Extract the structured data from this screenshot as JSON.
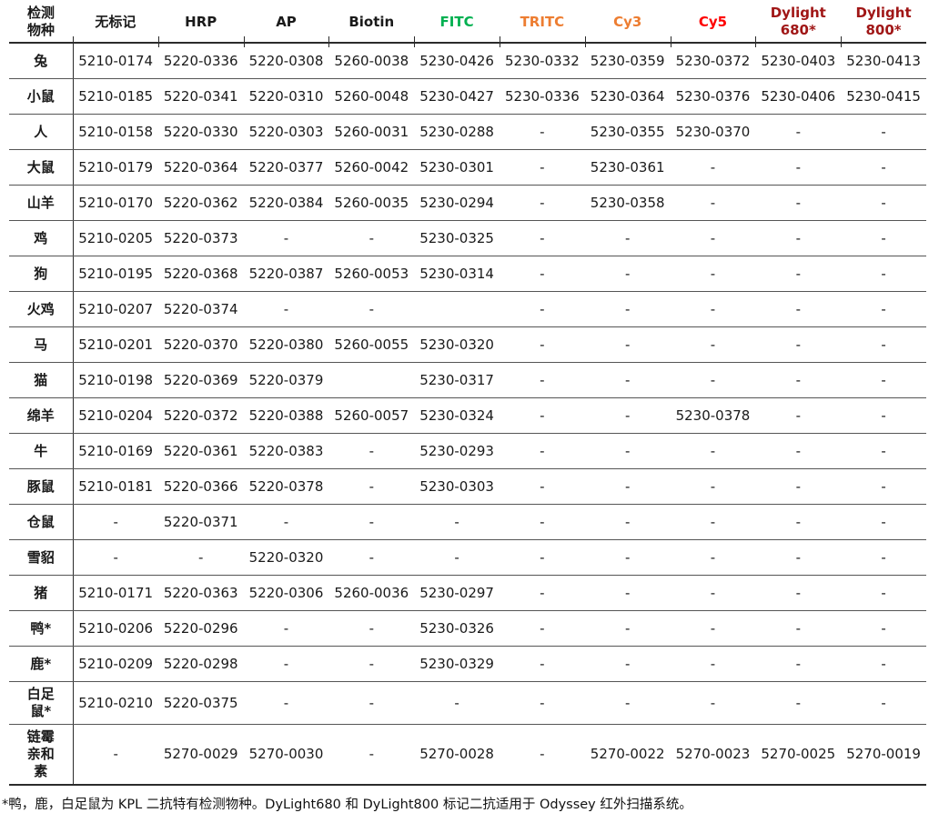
{
  "table": {
    "columns": [
      {
        "label": "检测\n物种",
        "color": "#1a1a1a"
      },
      {
        "label": "无标记",
        "color": "#1a1a1a"
      },
      {
        "label": "HRP",
        "color": "#1a1a1a"
      },
      {
        "label": "AP",
        "color": "#1a1a1a"
      },
      {
        "label": "Biotin",
        "color": "#1a1a1a"
      },
      {
        "label": "FITC",
        "color": "#00b050"
      },
      {
        "label": "TRITC",
        "color": "#ed7d31"
      },
      {
        "label": "Cy3",
        "color": "#ed7d31"
      },
      {
        "label": "Cy5",
        "color": "#fe0000"
      },
      {
        "label": "Dylight\n680*",
        "color": "#a01616"
      },
      {
        "label": "Dylight\n800*",
        "color": "#a01616"
      }
    ],
    "rows": [
      {
        "species": "兔",
        "values": [
          "5210-0174",
          "5220-0336",
          "5220-0308",
          "5260-0038",
          "5230-0426",
          "5230-0332",
          "5230-0359",
          "5230-0372",
          "5230-0403",
          "5230-0413"
        ]
      },
      {
        "species": "小鼠",
        "values": [
          "5210-0185",
          "5220-0341",
          "5220-0310",
          "5260-0048",
          "5230-0427",
          "5230-0336",
          "5230-0364",
          "5230-0376",
          "5230-0406",
          "5230-0415"
        ]
      },
      {
        "species": "人",
        "values": [
          "5210-0158",
          "5220-0330",
          "5220-0303",
          "5260-0031",
          "5230-0288",
          "-",
          "5230-0355",
          "5230-0370",
          "-",
          "-"
        ]
      },
      {
        "species": "大鼠",
        "values": [
          "5210-0179",
          "5220-0364",
          "5220-0377",
          "5260-0042",
          "5230-0301",
          "-",
          "5230-0361",
          "-",
          "-",
          "-"
        ]
      },
      {
        "species": "山羊",
        "values": [
          "5210-0170",
          "5220-0362",
          "5220-0384",
          "5260-0035",
          "5230-0294",
          "-",
          "5230-0358",
          "-",
          "-",
          "-"
        ]
      },
      {
        "species": "鸡",
        "values": [
          "5210-0205",
          "5220-0373",
          "-",
          "-",
          "5230-0325",
          "-",
          "-",
          "-",
          "-",
          "-"
        ]
      },
      {
        "species": "狗",
        "values": [
          "5210-0195",
          "5220-0368",
          "5220-0387",
          "5260-0053",
          "5230-0314",
          "-",
          "-",
          "-",
          "-",
          "-"
        ]
      },
      {
        "species": "火鸡",
        "values": [
          "5210-0207",
          "5220-0374",
          "-",
          "-",
          "",
          "-",
          "-",
          "-",
          "-",
          "-"
        ]
      },
      {
        "species": "马",
        "values": [
          "5210-0201",
          "5220-0370",
          "5220-0380",
          "5260-0055",
          "5230-0320",
          "-",
          "-",
          "-",
          "-",
          "-"
        ]
      },
      {
        "species": "猫",
        "values": [
          "5210-0198",
          "5220-0369",
          "5220-0379",
          "",
          "5230-0317",
          "-",
          "-",
          "-",
          "-",
          "-"
        ]
      },
      {
        "species": "绵羊",
        "values": [
          "5210-0204",
          "5220-0372",
          "5220-0388",
          "5260-0057",
          "5230-0324",
          "-",
          "-",
          "5230-0378",
          "-",
          "-"
        ]
      },
      {
        "species": "牛",
        "values": [
          "5210-0169",
          "5220-0361",
          "5220-0383",
          "-",
          "5230-0293",
          "-",
          "-",
          "-",
          "-",
          "-"
        ]
      },
      {
        "species": "豚鼠",
        "values": [
          "5210-0181",
          "5220-0366",
          "5220-0378",
          "-",
          "5230-0303",
          "-",
          "-",
          "-",
          "-",
          "-"
        ]
      },
      {
        "species": "仓鼠",
        "values": [
          "-",
          "5220-0371",
          "-",
          "-",
          "-",
          "-",
          "-",
          "-",
          "-",
          "-"
        ]
      },
      {
        "species": "雪貂",
        "values": [
          "-",
          "-",
          "5220-0320",
          "-",
          "-",
          "-",
          "-",
          "-",
          "-",
          "-"
        ]
      },
      {
        "species": "猪",
        "values": [
          "5210-0171",
          "5220-0363",
          "5220-0306",
          "5260-0036",
          "5230-0297",
          "-",
          "-",
          "-",
          "-",
          "-"
        ]
      },
      {
        "species": "鸭*",
        "values": [
          "5210-0206",
          "5220-0296",
          "-",
          "-",
          "5230-0326",
          "-",
          "-",
          "-",
          "-",
          "-"
        ]
      },
      {
        "species": "鹿*",
        "values": [
          "5210-0209",
          "5220-0298",
          "-",
          "-",
          "5230-0329",
          "-",
          "-",
          "-",
          "-",
          "-"
        ]
      },
      {
        "species": "白足鼠*",
        "values": [
          "5210-0210",
          "5220-0375",
          "-",
          "-",
          "-",
          "-",
          "-",
          "-",
          "-",
          "-"
        ]
      },
      {
        "species": "链霉亲和素",
        "values": [
          "-",
          "5270-0029",
          "5270-0030",
          "-",
          "5270-0028",
          "-",
          "5270-0022",
          "5270-0023",
          "5270-0025",
          "5270-0019"
        ]
      }
    ],
    "footnote": "*鸭，鹿，白足鼠为 KPL 二抗特有检测物种。DyLight680 和 DyLight800 标记二抗适用于 Odyssey 红外扫描系统。"
  }
}
